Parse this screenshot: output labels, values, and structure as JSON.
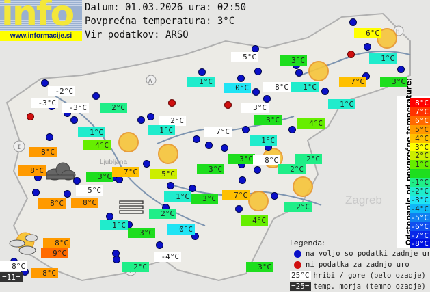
{
  "header": {
    "logo_text": "info",
    "logo_url": "www.informacije.si",
    "date_line": "Datum: 01.03.2026 ura: 02:50",
    "avg_line": "Povprečna temperatura: 3°C",
    "source_line": "Vir podatkov: ARSO"
  },
  "map_text": {
    "zagreb": "Zagreb",
    "ljubljana": "Ljubljana",
    "hr": "HR",
    "a": "A",
    "i": "I",
    "h": "H"
  },
  "labels": [
    {
      "t": "6°C",
      "bg": "#ffff00"
    },
    {
      "t": "5°C",
      "bg": "#ffffff"
    },
    {
      "t": "3°C",
      "bg": "#1ede1e"
    },
    {
      "t": "1°C",
      "bg": "#20eccc"
    },
    {
      "t": "1°C",
      "bg": "#20eccc"
    },
    {
      "t": "0°C",
      "bg": "#20e4f4"
    },
    {
      "t": "8°C",
      "bg": "#ffffff"
    },
    {
      "t": "1°C",
      "bg": "#20eccc"
    },
    {
      "t": "7°C",
      "bg": "#ffc000"
    },
    {
      "t": "3°C",
      "bg": "#1ede1e"
    },
    {
      "t": "1°C",
      "bg": "#20eccc"
    },
    {
      "t": "3°C",
      "bg": "#ffffff"
    },
    {
      "t": "3°C",
      "bg": "#1ede1e"
    },
    {
      "t": "4°C",
      "bg": "#66ee00"
    },
    {
      "t": "7°C",
      "bg": "#ffffff"
    },
    {
      "t": "1°C",
      "bg": "#20eccc"
    },
    {
      "t": "3°C",
      "bg": "#1ede1e"
    },
    {
      "t": "8°C",
      "bg": "#ffffff"
    },
    {
      "t": "2°C",
      "bg": "#20ee88"
    },
    {
      "t": "2°C",
      "bg": "#20ee88"
    },
    {
      "t": "7°C",
      "bg": "#ffc000"
    },
    {
      "t": "2°C",
      "bg": "#20ee88"
    },
    {
      "t": "4°C",
      "bg": "#66ee00"
    },
    {
      "t": "3°C",
      "bg": "#1ede1e"
    },
    {
      "t": "-2°C",
      "bg": "#ffffff"
    },
    {
      "t": "-3°C",
      "bg": "#ffffff"
    },
    {
      "t": "-3°C",
      "bg": "#ffffff"
    },
    {
      "t": "2°C",
      "bg": "#20ee88"
    },
    {
      "t": "1°C",
      "bg": "#20eccc"
    },
    {
      "t": "4°C",
      "bg": "#66ee00"
    },
    {
      "t": "8°C",
      "bg": "#ff9a00"
    },
    {
      "t": "8°C",
      "bg": "#ff9a00"
    },
    {
      "t": "3°C",
      "bg": "#1ede1e"
    },
    {
      "t": "7°C",
      "bg": "#ffc000"
    },
    {
      "t": "5°C",
      "bg": "#ccee00"
    },
    {
      "t": "2°C",
      "bg": "#ffffff"
    },
    {
      "t": "1°C",
      "bg": "#20eccc"
    },
    {
      "t": "5°C",
      "bg": "#ffffff"
    },
    {
      "t": "8°C",
      "bg": "#ff9a00"
    },
    {
      "t": "8°C",
      "bg": "#ff9a00"
    },
    {
      "t": "1°C",
      "bg": "#20eccc"
    },
    {
      "t": "3°C",
      "bg": "#1ede1e"
    },
    {
      "t": "2°C",
      "bg": "#20ee88"
    },
    {
      "t": "1°C",
      "bg": "#20eccc"
    },
    {
      "t": "3°C",
      "bg": "#1ede1e"
    },
    {
      "t": "0°C",
      "bg": "#20e4f4"
    },
    {
      "t": "8°C",
      "bg": "#ff9a00"
    },
    {
      "t": "9°C",
      "bg": "#ff6a00"
    },
    {
      "t": "8°C",
      "bg": "#ffffff"
    },
    {
      "t": "=11=",
      "bg": "#333333"
    },
    {
      "t": "8°C",
      "bg": "#ff9a00"
    },
    {
      "t": "2°C",
      "bg": "#20ee88"
    },
    {
      "t": "-4°C",
      "bg": "#ffffff"
    },
    {
      "t": "3°C",
      "bg": "#1ede1e"
    }
  ],
  "scale": {
    "title": "Odstopanje od povprečne temperature:",
    "rows": [
      {
        "t": "8°C",
        "bg": "#ff0000",
        "fg": "#ffffff"
      },
      {
        "t": "7°C",
        "bg": "#ff3300",
        "fg": "#ffffff"
      },
      {
        "t": "6°C",
        "bg": "#ff6a00",
        "fg": "#ffffff"
      },
      {
        "t": "5°C",
        "bg": "#ff9a00",
        "fg": "#222"
      },
      {
        "t": "4°C",
        "bg": "#ffc000",
        "fg": "#222"
      },
      {
        "t": "3°C",
        "bg": "#ffff00",
        "fg": "#222"
      },
      {
        "t": "2°C",
        "bg": "#ccee00",
        "fg": "#222"
      },
      {
        "t": "1°C",
        "bg": "#66ee00",
        "fg": "#222"
      },
      {
        "t": "",
        "bg": "#1ede1e",
        "fg": "#222"
      },
      {
        "t": "-1°C",
        "bg": "#20ee88",
        "fg": "#222"
      },
      {
        "t": "-2°C",
        "bg": "#20eccc",
        "fg": "#222"
      },
      {
        "t": "-3°C",
        "bg": "#20e4f4",
        "fg": "#222"
      },
      {
        "t": "-4°C",
        "bg": "#10b8f8",
        "fg": "#222"
      },
      {
        "t": "-5°C",
        "bg": "#1080f0",
        "fg": "#ffffff"
      },
      {
        "t": "-6°C",
        "bg": "#1050f0",
        "fg": "#ffffff"
      },
      {
        "t": "-7°C",
        "bg": "#0828e8",
        "fg": "#ffffff"
      },
      {
        "t": "-8°C",
        "bg": "#0010e0",
        "fg": "#ffffff"
      }
    ]
  },
  "legend": {
    "title": "Legenda:",
    "blue": "na voljo so podatki zadnje ure",
    "red": "ni podatka za zadnjo uro",
    "mountain_sample": "25°C",
    "mountain": "hribi / gore (belo ozadje)",
    "sea_sample": "=25=",
    "sea": "temp. morja (temno ozadje)",
    "blue_color": "#0a10c8",
    "red_color": "#d01010"
  }
}
